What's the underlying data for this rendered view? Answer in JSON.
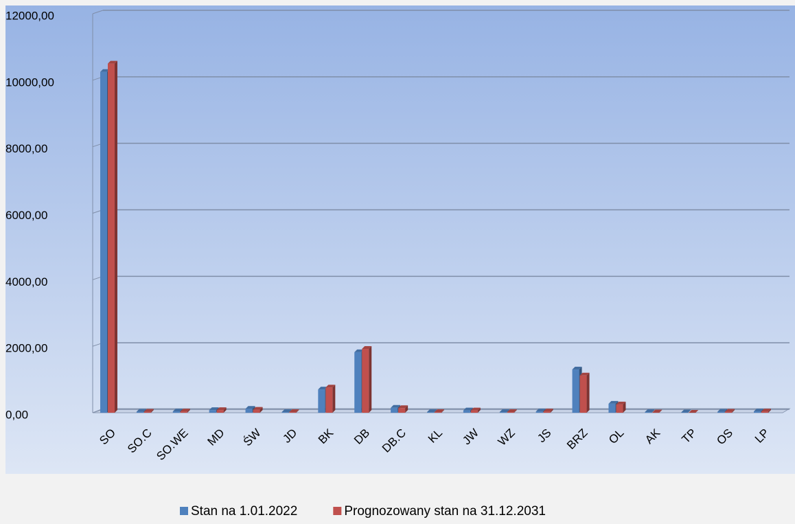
{
  "chart_data": {
    "type": "bar",
    "categories": [
      "SO",
      "SO.C",
      "SO.WE",
      "MD",
      "ŚW",
      "JD",
      "BK",
      "DB",
      "DB.C",
      "KL",
      "JW",
      "WZ",
      "JS",
      "BRZ",
      "OL",
      "AK",
      "TP",
      "OS",
      "LP"
    ],
    "series": [
      {
        "name": "Stan na 1.01.2022",
        "color": "#4f81bd",
        "values": [
          10250,
          30,
          40,
          80,
          120,
          20,
          700,
          1820,
          150,
          20,
          70,
          20,
          40,
          1300,
          270,
          20,
          10,
          30,
          40
        ]
      },
      {
        "name": "Prognozowany stan na 31.12.2031",
        "color": "#c0504d",
        "values": [
          10500,
          30,
          40,
          80,
          90,
          20,
          760,
          1920,
          140,
          20,
          70,
          20,
          40,
          1120,
          250,
          10,
          0,
          30,
          40
        ]
      }
    ],
    "ylim": [
      0,
      12000
    ],
    "yticks": [
      {
        "value": 0,
        "label": "0,00"
      },
      {
        "value": 2000,
        "label": "2000,00"
      },
      {
        "value": 4000,
        "label": "4000,00"
      },
      {
        "value": 6000,
        "label": "6000,00"
      },
      {
        "value": 8000,
        "label": "8000,00"
      },
      {
        "value": 10000,
        "label": "10000,00"
      },
      {
        "value": 12000,
        "label": "12000,00"
      }
    ],
    "grid": true,
    "legend": "bottom"
  }
}
